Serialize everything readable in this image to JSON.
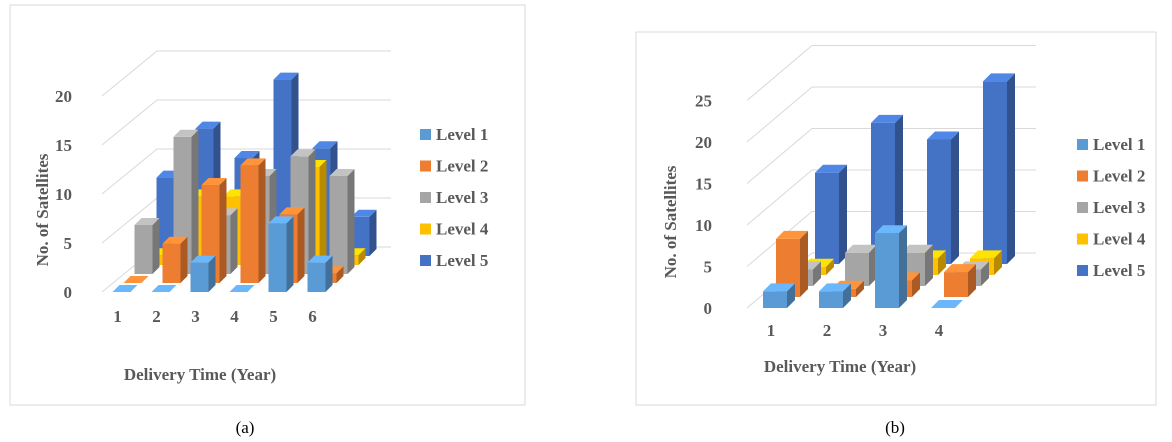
{
  "chart_data": [
    {
      "type": "bar",
      "caption": "(a)",
      "xlabel": "Delivery Time (Year)",
      "ylabel": "No. of Satellites",
      "categories": [
        "1",
        "2",
        "3",
        "4",
        "5",
        "6"
      ],
      "yticks": [
        "0",
        "5",
        "10",
        "15",
        "20"
      ],
      "ylim": [
        0,
        22
      ],
      "grid": true,
      "legend_position": "right",
      "series": [
        {
          "name": "Level 1",
          "color": "#5b9bd5",
          "values": [
            0,
            0,
            3,
            0,
            7,
            3
          ]
        },
        {
          "name": "Level 2",
          "color": "#ed7d31",
          "values": [
            0,
            4,
            10,
            12,
            7,
            1
          ]
        },
        {
          "name": "Level 3",
          "color": "#a5a5a5",
          "values": [
            5,
            14,
            6,
            10,
            12,
            10
          ]
        },
        {
          "name": "Level 4",
          "color": "#ffc000",
          "values": [
            1,
            7,
            7,
            2,
            10,
            1
          ]
        },
        {
          "name": "Level 5",
          "color": "#4472c4",
          "values": [
            8,
            13,
            10,
            18,
            11,
            4
          ]
        }
      ]
    },
    {
      "type": "bar",
      "caption": "(b)",
      "xlabel": "Delivery Time (Year)",
      "ylabel": "No. of Satellites",
      "categories": [
        "1",
        "2",
        "3",
        "4"
      ],
      "yticks": [
        "0",
        "5",
        "10",
        "15",
        "20",
        "25"
      ],
      "ylim": [
        0,
        27
      ],
      "grid": true,
      "legend_position": "right",
      "series": [
        {
          "name": "Level 1",
          "color": "#5b9bd5",
          "values": [
            2,
            2,
            9,
            0
          ]
        },
        {
          "name": "Level 2",
          "color": "#ed7d31",
          "values": [
            7,
            1,
            2,
            3
          ]
        },
        {
          "name": "Level 3",
          "color": "#a5a5a5",
          "values": [
            2,
            4,
            4,
            2
          ]
        },
        {
          "name": "Level 4",
          "color": "#ffc000",
          "values": [
            1,
            1,
            2,
            2
          ]
        },
        {
          "name": "Level 5",
          "color": "#4472c4",
          "values": [
            11,
            17,
            15,
            22
          ]
        }
      ]
    }
  ]
}
